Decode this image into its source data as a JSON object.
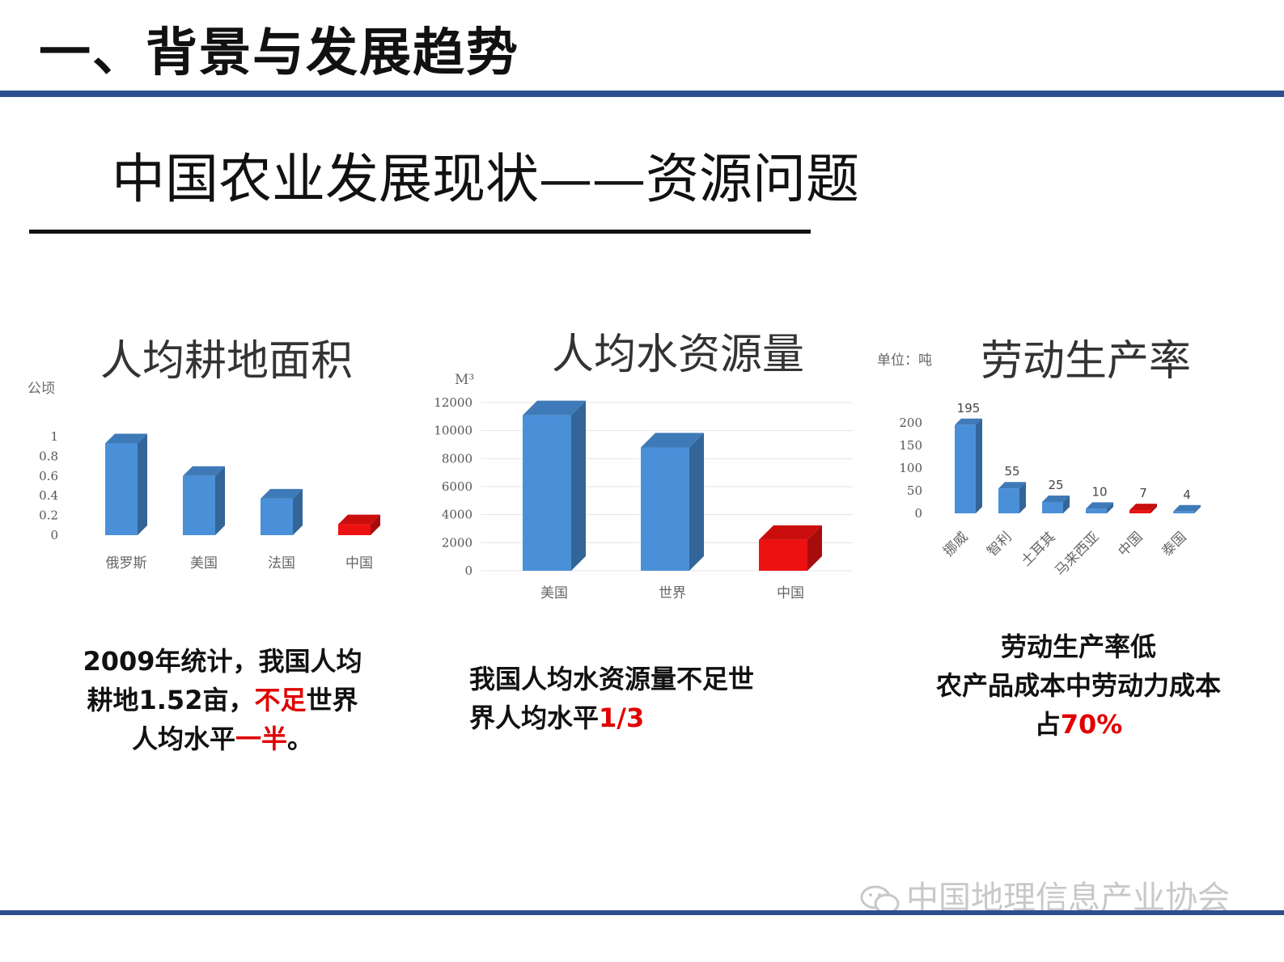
{
  "header": {
    "title": "一、背景与发展趋势"
  },
  "subtitle": "中国农业发展现状——资源问题",
  "chart_data": [
    {
      "type": "bar",
      "title": "人均耕地面积",
      "unit": "公顷",
      "categories": [
        "俄罗斯",
        "美国",
        "法国",
        "中国"
      ],
      "values": [
        0.93,
        0.6,
        0.37,
        0.11
      ],
      "ylim": [
        0,
        1
      ],
      "yticks": [
        "1",
        "0.8",
        "0.6",
        "0.4",
        "0.2",
        "0"
      ],
      "ytick_values": [
        1,
        0.8,
        0.6,
        0.4,
        0.2,
        0
      ],
      "grid": false,
      "colors": [
        "#4a90d9",
        "#4a90d9",
        "#4a90d9",
        "#ee1111"
      ]
    },
    {
      "type": "bar",
      "title": "人均水资源量",
      "unit": "M³",
      "categories": [
        "美国",
        "世界",
        "中国"
      ],
      "values": [
        11100,
        8800,
        2200
      ],
      "ylim": [
        0,
        12000
      ],
      "yticks": [
        "12000",
        "10000",
        "8000",
        "6000",
        "4000",
        "2000",
        "0"
      ],
      "ytick_values": [
        12000,
        10000,
        8000,
        6000,
        4000,
        2000,
        0
      ],
      "grid": true,
      "colors": [
        "#4a90d9",
        "#4a90d9",
        "#ee1111"
      ]
    },
    {
      "type": "bar",
      "title": "劳动生产率",
      "unit": "单位：吨",
      "categories": [
        "挪威",
        "智利",
        "土耳其",
        "马来西亚",
        "中国",
        "泰国"
      ],
      "values": [
        195,
        55,
        25,
        10,
        7,
        4
      ],
      "value_labels": [
        "195",
        "55",
        "25",
        "10",
        "7",
        "4"
      ],
      "ylim": [
        0,
        200
      ],
      "yticks": [
        "200",
        "150",
        "100",
        "50",
        "0"
      ],
      "ytick_values": [
        200,
        150,
        100,
        50,
        0
      ],
      "grid": false,
      "colors": [
        "#4a90d9",
        "#4a90d9",
        "#4a90d9",
        "#4a90d9",
        "#ee1111",
        "#4a90d9"
      ]
    }
  ],
  "notes": {
    "land": {
      "a": "2009年统计，我国人均",
      "b": "耕地1.52亩，",
      "c": "不足",
      "d": "世界",
      "e": "人均水平",
      "f": "一半",
      "g": "。"
    },
    "water": {
      "a": "我国人均水资源量不足世",
      "b": "界人均水平",
      "c": "1/3"
    },
    "labor": {
      "a": "劳动生产率低",
      "b": "农产品成本中劳动力成本",
      "c": "占",
      "d": "70%"
    }
  },
  "watermark": {
    "text": "中国地理信息产业协会",
    "icon": "wechat-icon"
  },
  "colors": {
    "accent": "#2e4f8f",
    "bar_blue": "#4a90d9",
    "bar_red": "#ee1111",
    "highlight": "#e10000"
  }
}
